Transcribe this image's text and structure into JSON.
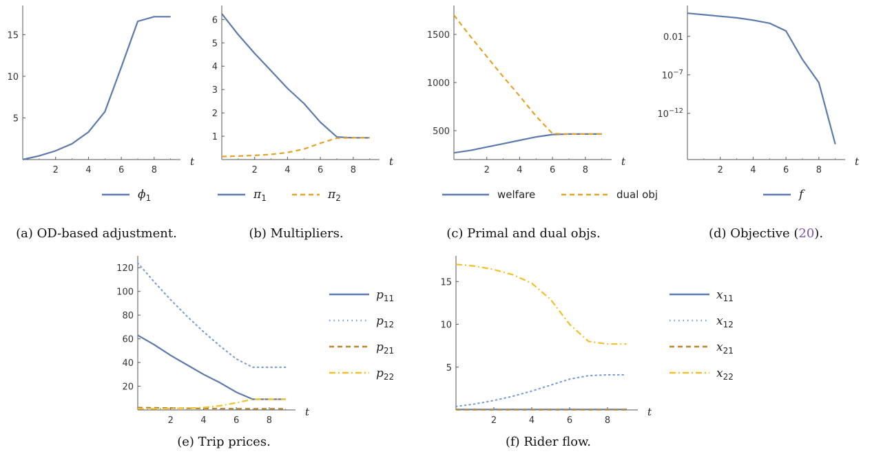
{
  "styles": {
    "blue": "#5b79ad",
    "lightblue": "#7b9fd4",
    "orange": "#e4a227",
    "brown": "#b8862b",
    "gold": "#f3bf2a",
    "ref": "#7a55a8"
  },
  "chart_data": [
    {
      "id": "a",
      "type": "line",
      "caption": "(a) OD-based adjustment.",
      "xlabel": "t",
      "ylabel": "",
      "xlim": [
        0,
        9.6
      ],
      "ylim": [
        0,
        18.5
      ],
      "yscale": "linear",
      "xticks": [
        2,
        4,
        6,
        8
      ],
      "yticks": [
        5,
        10,
        15
      ],
      "legend_position": "bottom",
      "series": [
        {
          "name": "ϕ",
          "sub": "1",
          "style": "solid",
          "color": "#5b79ad",
          "x": [
            0,
            1,
            2,
            3,
            4,
            5,
            6,
            7,
            8,
            9
          ],
          "y": [
            0,
            0.45,
            1.05,
            1.9,
            3.3,
            5.75,
            11.1,
            16.6,
            17.15,
            17.15
          ]
        }
      ]
    },
    {
      "id": "b",
      "type": "line",
      "caption": "(b) Multipliers.",
      "xlabel": "t",
      "ylabel": "",
      "xlim": [
        0,
        9.6
      ],
      "ylim": [
        0,
        6.6
      ],
      "yscale": "linear",
      "xticks": [
        2,
        4,
        6,
        8
      ],
      "yticks": [
        1,
        2,
        3,
        4,
        5,
        6
      ],
      "legend_position": "bottom",
      "series": [
        {
          "name": "π",
          "sub": "1",
          "style": "solid",
          "color": "#5b79ad",
          "x": [
            0,
            1,
            2,
            3,
            4,
            5,
            6,
            7,
            8,
            9
          ],
          "y": [
            6.25,
            5.35,
            4.55,
            3.8,
            3.05,
            2.4,
            1.6,
            0.97,
            0.93,
            0.93
          ]
        },
        {
          "name": "π",
          "sub": "2",
          "style": "dashed",
          "color": "#e4a227",
          "x": [
            0,
            1,
            2,
            3,
            4,
            5,
            6,
            7,
            8,
            9
          ],
          "y": [
            0.13,
            0.15,
            0.18,
            0.22,
            0.3,
            0.45,
            0.7,
            0.92,
            0.93,
            0.93
          ]
        }
      ]
    },
    {
      "id": "c",
      "type": "line",
      "caption": "(c) Primal and dual objs.",
      "xlabel": "t",
      "ylabel": "",
      "xlim": [
        0,
        9.6
      ],
      "ylim": [
        200,
        1800
      ],
      "yscale": "linear",
      "xticks": [
        2,
        4,
        6,
        8
      ],
      "yticks": [
        500,
        1000,
        1500
      ],
      "legend_position": "bottom",
      "series": [
        {
          "name": "welfare",
          "sub": "",
          "style": "solid",
          "color": "#5b79ad",
          "x": [
            0,
            1,
            2,
            3,
            4,
            5,
            6,
            7,
            8,
            9
          ],
          "y": [
            270,
            295,
            330,
            365,
            400,
            435,
            460,
            465,
            465,
            465
          ]
        },
        {
          "name": "dual obj",
          "sub": "",
          "style": "dashed",
          "color": "#e4a227",
          "x": [
            0,
            1,
            2,
            3,
            4,
            5,
            6,
            7,
            8,
            9
          ],
          "y": [
            1700,
            1480,
            1270,
            1060,
            860,
            650,
            470,
            465,
            465,
            465
          ]
        }
      ]
    },
    {
      "id": "d",
      "type": "line",
      "caption": "(d) Objective (",
      "caption_ref": "20",
      "caption_tail": ").",
      "xlabel": "t",
      "ylabel": "",
      "xlim": [
        0,
        9.6
      ],
      "ylim": [
        1e-18,
        100
      ],
      "yscale": "log",
      "xticks": [
        2,
        4,
        6,
        8
      ],
      "yticks": [
        0.01,
        1e-07,
        1e-12
      ],
      "ytick_labels": [
        "0.01",
        "10",
        "10"
      ],
      "ytick_exps": [
        "",
        "−7",
        "−12"
      ],
      "legend_position": "bottom",
      "series": [
        {
          "name": "f",
          "sub": "",
          "style": "solid",
          "color": "#5b79ad",
          "x": [
            0,
            1,
            2,
            3,
            4,
            5,
            6,
            7,
            8,
            9
          ],
          "y": [
            10,
            6.3,
            3.98,
            2.5,
            1.26,
            0.5,
            0.05,
            1e-05,
            1e-08,
            1e-16
          ]
        }
      ]
    },
    {
      "id": "e",
      "type": "line",
      "caption": "(e) Trip prices.",
      "xlabel": "t",
      "ylabel": "",
      "xlim": [
        0,
        9.6
      ],
      "ylim": [
        0,
        130
      ],
      "yscale": "linear",
      "xticks": [
        2,
        4,
        6,
        8
      ],
      "yticks": [
        20,
        40,
        60,
        80,
        100,
        120
      ],
      "legend_position": "right",
      "series": [
        {
          "name": "p",
          "sub": "11",
          "style": "solid",
          "color": "#5b79ad",
          "x": [
            0,
            1,
            2,
            3,
            4,
            5,
            6,
            7,
            8,
            9
          ],
          "y": [
            63,
            55,
            46,
            38,
            30,
            23,
            15,
            9,
            9,
            9
          ]
        },
        {
          "name": "p",
          "sub": "12",
          "style": "dotted",
          "color": "#7b9fd4",
          "x": [
            0,
            1,
            2,
            3,
            4,
            5,
            6,
            7,
            8,
            9
          ],
          "y": [
            124,
            108,
            93,
            79,
            66,
            54,
            43,
            36,
            36,
            36
          ]
        },
        {
          "name": "p",
          "sub": "21",
          "style": "dashed",
          "color": "#b8862b",
          "x": [
            0,
            1,
            2,
            3,
            4,
            5,
            6,
            7,
            8,
            9
          ],
          "y": [
            2,
            1.8,
            1.6,
            1.4,
            1.2,
            1.1,
            1,
            1,
            1,
            1
          ]
        },
        {
          "name": "p",
          "sub": "22",
          "style": "dashdot",
          "color": "#f3bf2a",
          "x": [
            0,
            1,
            2,
            3,
            4,
            5,
            6,
            7,
            8,
            9
          ],
          "y": [
            1,
            1,
            1.2,
            1.5,
            2,
            3.5,
            6,
            9,
            9,
            9
          ]
        }
      ]
    },
    {
      "id": "f",
      "type": "line",
      "caption": "(f) Rider flow.",
      "xlabel": "t",
      "ylabel": "",
      "xlim": [
        0,
        9.6
      ],
      "ylim": [
        0,
        18
      ],
      "yscale": "linear",
      "xticks": [
        2,
        4,
        6,
        8
      ],
      "yticks": [
        5,
        10,
        15
      ],
      "legend_position": "right",
      "series": [
        {
          "name": "x",
          "sub": "11",
          "style": "solid",
          "color": "#5b79ad",
          "x": [
            0,
            1,
            2,
            3,
            4,
            5,
            6,
            7,
            8,
            9
          ],
          "y": [
            0.05,
            0.05,
            0.05,
            0.05,
            0.05,
            0.05,
            0.05,
            0.05,
            0.05,
            0.05
          ]
        },
        {
          "name": "x",
          "sub": "12",
          "style": "dotted",
          "color": "#7b9fd4",
          "x": [
            0,
            1,
            2,
            3,
            4,
            5,
            6,
            7,
            8,
            9
          ],
          "y": [
            0.4,
            0.7,
            1.1,
            1.6,
            2.2,
            2.9,
            3.6,
            4,
            4.1,
            4.1
          ]
        },
        {
          "name": "x",
          "sub": "21",
          "style": "dashed",
          "color": "#b8862b",
          "x": [
            0,
            1,
            2,
            3,
            4,
            5,
            6,
            7,
            8,
            9
          ],
          "y": [
            0.02,
            0.02,
            0.02,
            0.02,
            0.02,
            0.02,
            0.02,
            0.02,
            0.02,
            0.02
          ]
        },
        {
          "name": "x",
          "sub": "22",
          "style": "dashdot",
          "color": "#f3bf2a",
          "x": [
            0,
            1,
            2,
            3,
            4,
            5,
            6,
            7,
            8,
            9
          ],
          "y": [
            17,
            16.8,
            16.4,
            15.8,
            14.8,
            12.9,
            10,
            8,
            7.7,
            7.7
          ]
        }
      ]
    }
  ]
}
